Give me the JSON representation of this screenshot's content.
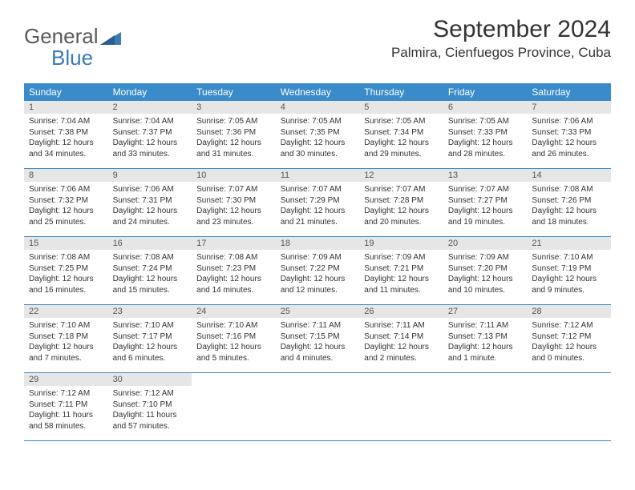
{
  "logo": {
    "text1": "General",
    "text2": "Blue"
  },
  "title": "September 2024",
  "location": "Palmira, Cienfuegos Province, Cuba",
  "colors": {
    "header_bg": "#3a8bc9",
    "header_fg": "#ffffff",
    "daynum_bg": "#e6e6e6",
    "daynum_fg": "#555555",
    "text": "#333333",
    "logo_gray": "#5a5a5a",
    "logo_blue": "#3a7ab8",
    "divider": "#3a8bc9"
  },
  "day_names": [
    "Sunday",
    "Monday",
    "Tuesday",
    "Wednesday",
    "Thursday",
    "Friday",
    "Saturday"
  ],
  "weeks": [
    [
      {
        "n": "1",
        "sr": "Sunrise: 7:04 AM",
        "ss": "Sunset: 7:38 PM",
        "dl": "Daylight: 12 hours and 34 minutes."
      },
      {
        "n": "2",
        "sr": "Sunrise: 7:04 AM",
        "ss": "Sunset: 7:37 PM",
        "dl": "Daylight: 12 hours and 33 minutes."
      },
      {
        "n": "3",
        "sr": "Sunrise: 7:05 AM",
        "ss": "Sunset: 7:36 PM",
        "dl": "Daylight: 12 hours and 31 minutes."
      },
      {
        "n": "4",
        "sr": "Sunrise: 7:05 AM",
        "ss": "Sunset: 7:35 PM",
        "dl": "Daylight: 12 hours and 30 minutes."
      },
      {
        "n": "5",
        "sr": "Sunrise: 7:05 AM",
        "ss": "Sunset: 7:34 PM",
        "dl": "Daylight: 12 hours and 29 minutes."
      },
      {
        "n": "6",
        "sr": "Sunrise: 7:05 AM",
        "ss": "Sunset: 7:33 PM",
        "dl": "Daylight: 12 hours and 28 minutes."
      },
      {
        "n": "7",
        "sr": "Sunrise: 7:06 AM",
        "ss": "Sunset: 7:33 PM",
        "dl": "Daylight: 12 hours and 26 minutes."
      }
    ],
    [
      {
        "n": "8",
        "sr": "Sunrise: 7:06 AM",
        "ss": "Sunset: 7:32 PM",
        "dl": "Daylight: 12 hours and 25 minutes."
      },
      {
        "n": "9",
        "sr": "Sunrise: 7:06 AM",
        "ss": "Sunset: 7:31 PM",
        "dl": "Daylight: 12 hours and 24 minutes."
      },
      {
        "n": "10",
        "sr": "Sunrise: 7:07 AM",
        "ss": "Sunset: 7:30 PM",
        "dl": "Daylight: 12 hours and 23 minutes."
      },
      {
        "n": "11",
        "sr": "Sunrise: 7:07 AM",
        "ss": "Sunset: 7:29 PM",
        "dl": "Daylight: 12 hours and 21 minutes."
      },
      {
        "n": "12",
        "sr": "Sunrise: 7:07 AM",
        "ss": "Sunset: 7:28 PM",
        "dl": "Daylight: 12 hours and 20 minutes."
      },
      {
        "n": "13",
        "sr": "Sunrise: 7:07 AM",
        "ss": "Sunset: 7:27 PM",
        "dl": "Daylight: 12 hours and 19 minutes."
      },
      {
        "n": "14",
        "sr": "Sunrise: 7:08 AM",
        "ss": "Sunset: 7:26 PM",
        "dl": "Daylight: 12 hours and 18 minutes."
      }
    ],
    [
      {
        "n": "15",
        "sr": "Sunrise: 7:08 AM",
        "ss": "Sunset: 7:25 PM",
        "dl": "Daylight: 12 hours and 16 minutes."
      },
      {
        "n": "16",
        "sr": "Sunrise: 7:08 AM",
        "ss": "Sunset: 7:24 PM",
        "dl": "Daylight: 12 hours and 15 minutes."
      },
      {
        "n": "17",
        "sr": "Sunrise: 7:08 AM",
        "ss": "Sunset: 7:23 PM",
        "dl": "Daylight: 12 hours and 14 minutes."
      },
      {
        "n": "18",
        "sr": "Sunrise: 7:09 AM",
        "ss": "Sunset: 7:22 PM",
        "dl": "Daylight: 12 hours and 12 minutes."
      },
      {
        "n": "19",
        "sr": "Sunrise: 7:09 AM",
        "ss": "Sunset: 7:21 PM",
        "dl": "Daylight: 12 hours and 11 minutes."
      },
      {
        "n": "20",
        "sr": "Sunrise: 7:09 AM",
        "ss": "Sunset: 7:20 PM",
        "dl": "Daylight: 12 hours and 10 minutes."
      },
      {
        "n": "21",
        "sr": "Sunrise: 7:10 AM",
        "ss": "Sunset: 7:19 PM",
        "dl": "Daylight: 12 hours and 9 minutes."
      }
    ],
    [
      {
        "n": "22",
        "sr": "Sunrise: 7:10 AM",
        "ss": "Sunset: 7:18 PM",
        "dl": "Daylight: 12 hours and 7 minutes."
      },
      {
        "n": "23",
        "sr": "Sunrise: 7:10 AM",
        "ss": "Sunset: 7:17 PM",
        "dl": "Daylight: 12 hours and 6 minutes."
      },
      {
        "n": "24",
        "sr": "Sunrise: 7:10 AM",
        "ss": "Sunset: 7:16 PM",
        "dl": "Daylight: 12 hours and 5 minutes."
      },
      {
        "n": "25",
        "sr": "Sunrise: 7:11 AM",
        "ss": "Sunset: 7:15 PM",
        "dl": "Daylight: 12 hours and 4 minutes."
      },
      {
        "n": "26",
        "sr": "Sunrise: 7:11 AM",
        "ss": "Sunset: 7:14 PM",
        "dl": "Daylight: 12 hours and 2 minutes."
      },
      {
        "n": "27",
        "sr": "Sunrise: 7:11 AM",
        "ss": "Sunset: 7:13 PM",
        "dl": "Daylight: 12 hours and 1 minute."
      },
      {
        "n": "28",
        "sr": "Sunrise: 7:12 AM",
        "ss": "Sunset: 7:12 PM",
        "dl": "Daylight: 12 hours and 0 minutes."
      }
    ],
    [
      {
        "n": "29",
        "sr": "Sunrise: 7:12 AM",
        "ss": "Sunset: 7:11 PM",
        "dl": "Daylight: 11 hours and 58 minutes."
      },
      {
        "n": "30",
        "sr": "Sunrise: 7:12 AM",
        "ss": "Sunset: 7:10 PM",
        "dl": "Daylight: 11 hours and 57 minutes."
      },
      null,
      null,
      null,
      null,
      null
    ]
  ]
}
